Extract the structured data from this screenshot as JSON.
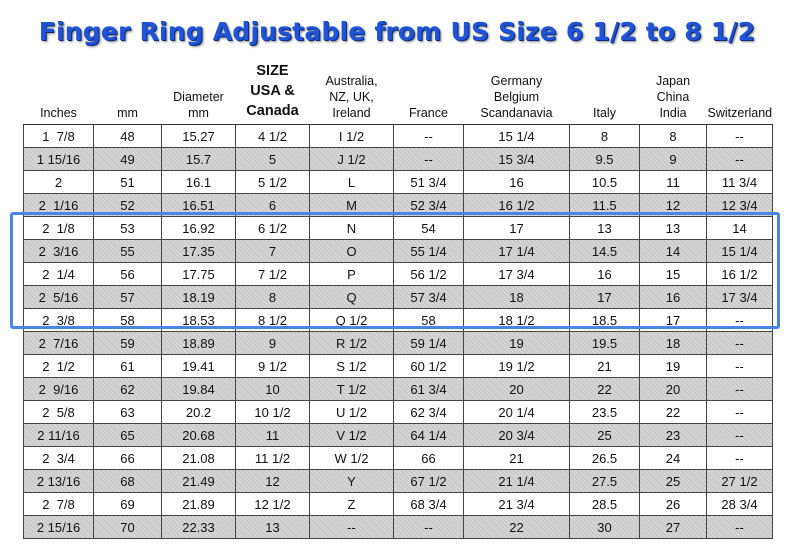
{
  "title": "Finger Ring Adjustable from US Size 6 1/2 to 8 1/2",
  "columns": [
    {
      "lines": [
        "Inches"
      ]
    },
    {
      "lines": [
        "mm"
      ]
    },
    {
      "lines": [
        "Diameter",
        "mm"
      ]
    },
    {
      "lines": [
        "SIZE",
        "USA &",
        "Canada"
      ]
    },
    {
      "lines": [
        "Australia,",
        "NZ, UK,",
        "Ireland"
      ]
    },
    {
      "lines": [
        "France"
      ]
    },
    {
      "lines": [
        "Germany",
        "Belgium",
        "Scandanavia"
      ]
    },
    {
      "lines": [
        "Italy"
      ]
    },
    {
      "lines": [
        "Japan",
        "China",
        "India"
      ]
    },
    {
      "lines": [
        "Switzerland"
      ]
    }
  ],
  "rows": [
    [
      "1  7/8",
      "48",
      "15.27",
      "4 1/2",
      "I 1/2",
      "--",
      "15 1/4",
      "8",
      "8",
      "--"
    ],
    [
      "1 15/16",
      "49",
      "15.7",
      "5",
      "J 1/2",
      "--",
      "15 3/4",
      "9.5",
      "9",
      "--"
    ],
    [
      "2",
      "51",
      "16.1",
      "5 1/2",
      "L",
      "51 3/4",
      "16",
      "10.5",
      "11",
      "11 3/4"
    ],
    [
      "2  1/16",
      "52",
      "16.51",
      "6",
      "M",
      "52 3/4",
      "16 1/2",
      "11.5",
      "12",
      "12 3/4"
    ],
    [
      "2  1/8",
      "53",
      "16.92",
      "6 1/2",
      "N",
      "54",
      "17",
      "13",
      "13",
      "14"
    ],
    [
      "2  3/16",
      "55",
      "17.35",
      "7",
      "O",
      "55 1/4",
      "17 1/4",
      "14.5",
      "14",
      "15 1/4"
    ],
    [
      "2  1/4",
      "56",
      "17.75",
      "7 1/2",
      "P",
      "56 1/2",
      "17 3/4",
      "16",
      "15",
      "16 1/2"
    ],
    [
      "2  5/16",
      "57",
      "18.19",
      "8",
      "Q",
      "57 3/4",
      "18",
      "17",
      "16",
      "17 3/4"
    ],
    [
      "2  3/8",
      "58",
      "18.53",
      "8 1/2",
      "Q 1/2",
      "58",
      "18 1/2",
      "18.5",
      "17",
      "--"
    ],
    [
      "2  7/16",
      "59",
      "18.89",
      "9",
      "R 1/2",
      "59 1/4",
      "19",
      "19.5",
      "18",
      "--"
    ],
    [
      "2  1/2",
      "61",
      "19.41",
      "9 1/2",
      "S 1/2",
      "60 1/2",
      "19 1/2",
      "21",
      "19",
      "--"
    ],
    [
      "2  9/16",
      "62",
      "19.84",
      "10",
      "T 1/2",
      "61 3/4",
      "20",
      "22",
      "20",
      "--"
    ],
    [
      "2  5/8",
      "63",
      "20.2",
      "10 1/2",
      "U 1/2",
      "62 3/4",
      "20 1/4",
      "23.5",
      "22",
      "--"
    ],
    [
      "2 11/16",
      "65",
      "20.68",
      "11",
      "V 1/2",
      "64 1/4",
      "20 3/4",
      "25",
      "23",
      "--"
    ],
    [
      "2  3/4",
      "66",
      "21.08",
      "11 1/2",
      "W 1/2",
      "66",
      "21",
      "26.5",
      "24",
      "--"
    ],
    [
      "2 13/16",
      "68",
      "21.49",
      "12",
      "Y",
      "67 1/2",
      "21 1/4",
      "27.5",
      "25",
      "27 1/2"
    ],
    [
      "2  7/8",
      "69",
      "21.89",
      "12 1/2",
      "Z",
      "68 3/4",
      "21 3/4",
      "28.5",
      "26",
      "28 3/4"
    ],
    [
      "2 15/16",
      "70",
      "22.33",
      "13",
      "--",
      "--",
      "22",
      "30",
      "27",
      "--"
    ]
  ],
  "highlighted_rows": [
    4,
    8
  ],
  "colors": {
    "title": "#1f53d8",
    "highlight_border": "#4a86e8",
    "shaded_row": "#c9c9c9"
  }
}
